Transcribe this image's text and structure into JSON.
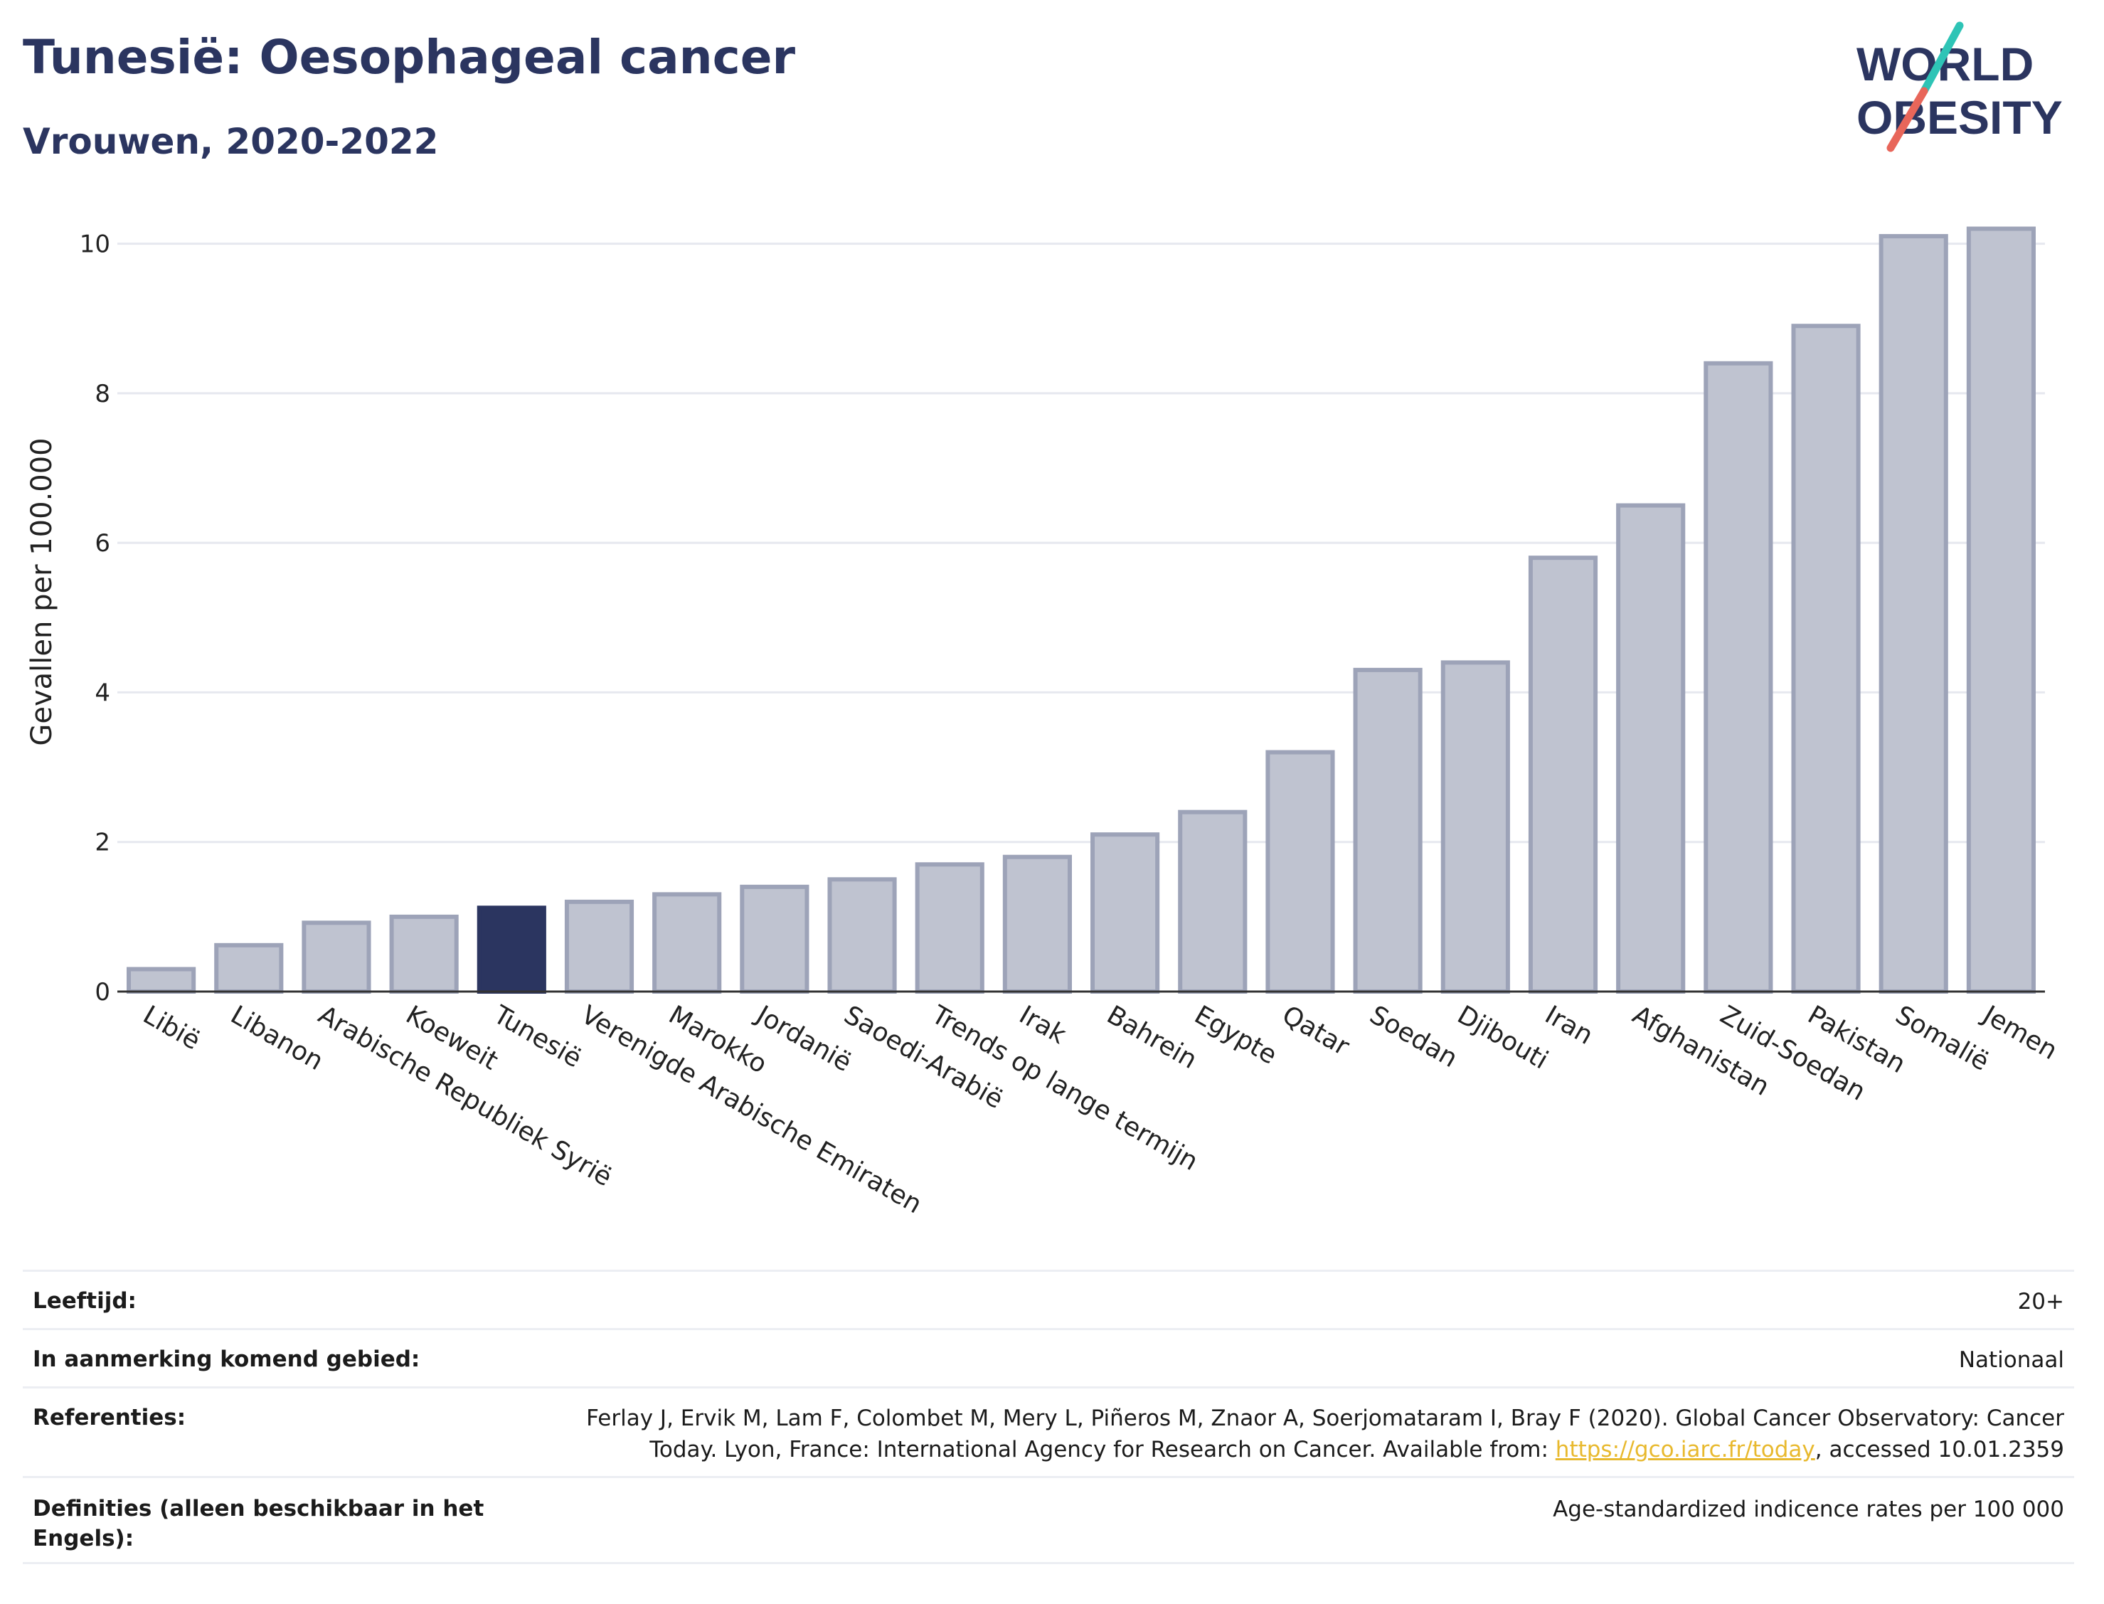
{
  "header": {
    "title": "Tunesië: Oesophageal cancer",
    "subtitle": "Vrouwen, 2020-2022"
  },
  "logo": {
    "line1": "WORLD",
    "line2": "OBESITY"
  },
  "colors": {
    "title": "#2b3560",
    "bar": "#bfc3d0",
    "bar_stroke": "#9da3b8",
    "highlight": "#2b3560",
    "link": "#e8b92e"
  },
  "chart_data": {
    "type": "bar",
    "title": "Tunesië: Oesophageal cancer",
    "subtitle": "Vrouwen, 2020-2022",
    "ylabel": "Gevallen per 100.000",
    "xlabel": "",
    "ylim": [
      0,
      10.5
    ],
    "yticks": [
      0,
      2,
      4,
      6,
      8,
      10
    ],
    "grid": true,
    "highlight_category": "Tunesië",
    "categories": [
      "Libië",
      "Libanon",
      "Arabische Republiek Syrië",
      "Koeweit",
      "Tunesië",
      "Verenigde Arabische Emiraten",
      "Marokko",
      "Jordanië",
      "Saoedi-Arabië",
      "Trends op lange termijn",
      "Irak",
      "Bahrein",
      "Egypte",
      "Qatar",
      "Soedan",
      "Djibouti",
      "Iran",
      "Afghanistan",
      "Zuid-Soedan",
      "Pakistan",
      "Somalië",
      "Jemen"
    ],
    "values": [
      0.3,
      0.62,
      0.92,
      1.0,
      1.12,
      1.2,
      1.3,
      1.4,
      1.5,
      1.7,
      1.8,
      2.1,
      2.4,
      3.2,
      4.3,
      4.4,
      5.8,
      6.5,
      8.4,
      8.9,
      10.1,
      10.2
    ]
  },
  "info": {
    "rows": [
      {
        "label": "Leeftijd:",
        "value": "20+"
      },
      {
        "label": "In aanmerking komend gebied:",
        "value": "Nationaal"
      },
      {
        "label": "Referenties:",
        "value_prefix": "Ferlay J, Ervik M, Lam F, Colombet M, Mery L, Piñeros M, Znaor A, Soerjomataram I, Bray F (2020). Global Cancer Observatory: Cancer Today. Lyon, France: International Agency for Research on Cancer. Available from: ",
        "link": "https://gco.iarc.fr/today",
        "value_suffix": ", accessed 10.01.2359"
      },
      {
        "label": "Definities (alleen beschikbaar in het Engels):",
        "value": "Age-standardized indicence rates per 100 000"
      }
    ]
  }
}
